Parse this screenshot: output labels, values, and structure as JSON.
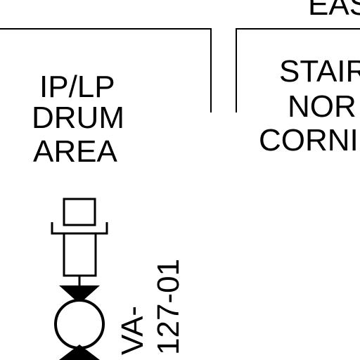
{
  "diagram": {
    "top_cropped_label": "EAS",
    "left_area_label": [
      "IP/LP",
      "DRUM",
      "AREA"
    ],
    "right_area_label": [
      "STAIR",
      "NOR",
      "CORNI"
    ],
    "valve_tag": [
      "VA-",
      "127-01"
    ],
    "colors": {
      "ink": "#000000",
      "background": "#ffffff"
    },
    "icons": [
      "valve-actuator-icon",
      "valve-body-icon"
    ]
  }
}
